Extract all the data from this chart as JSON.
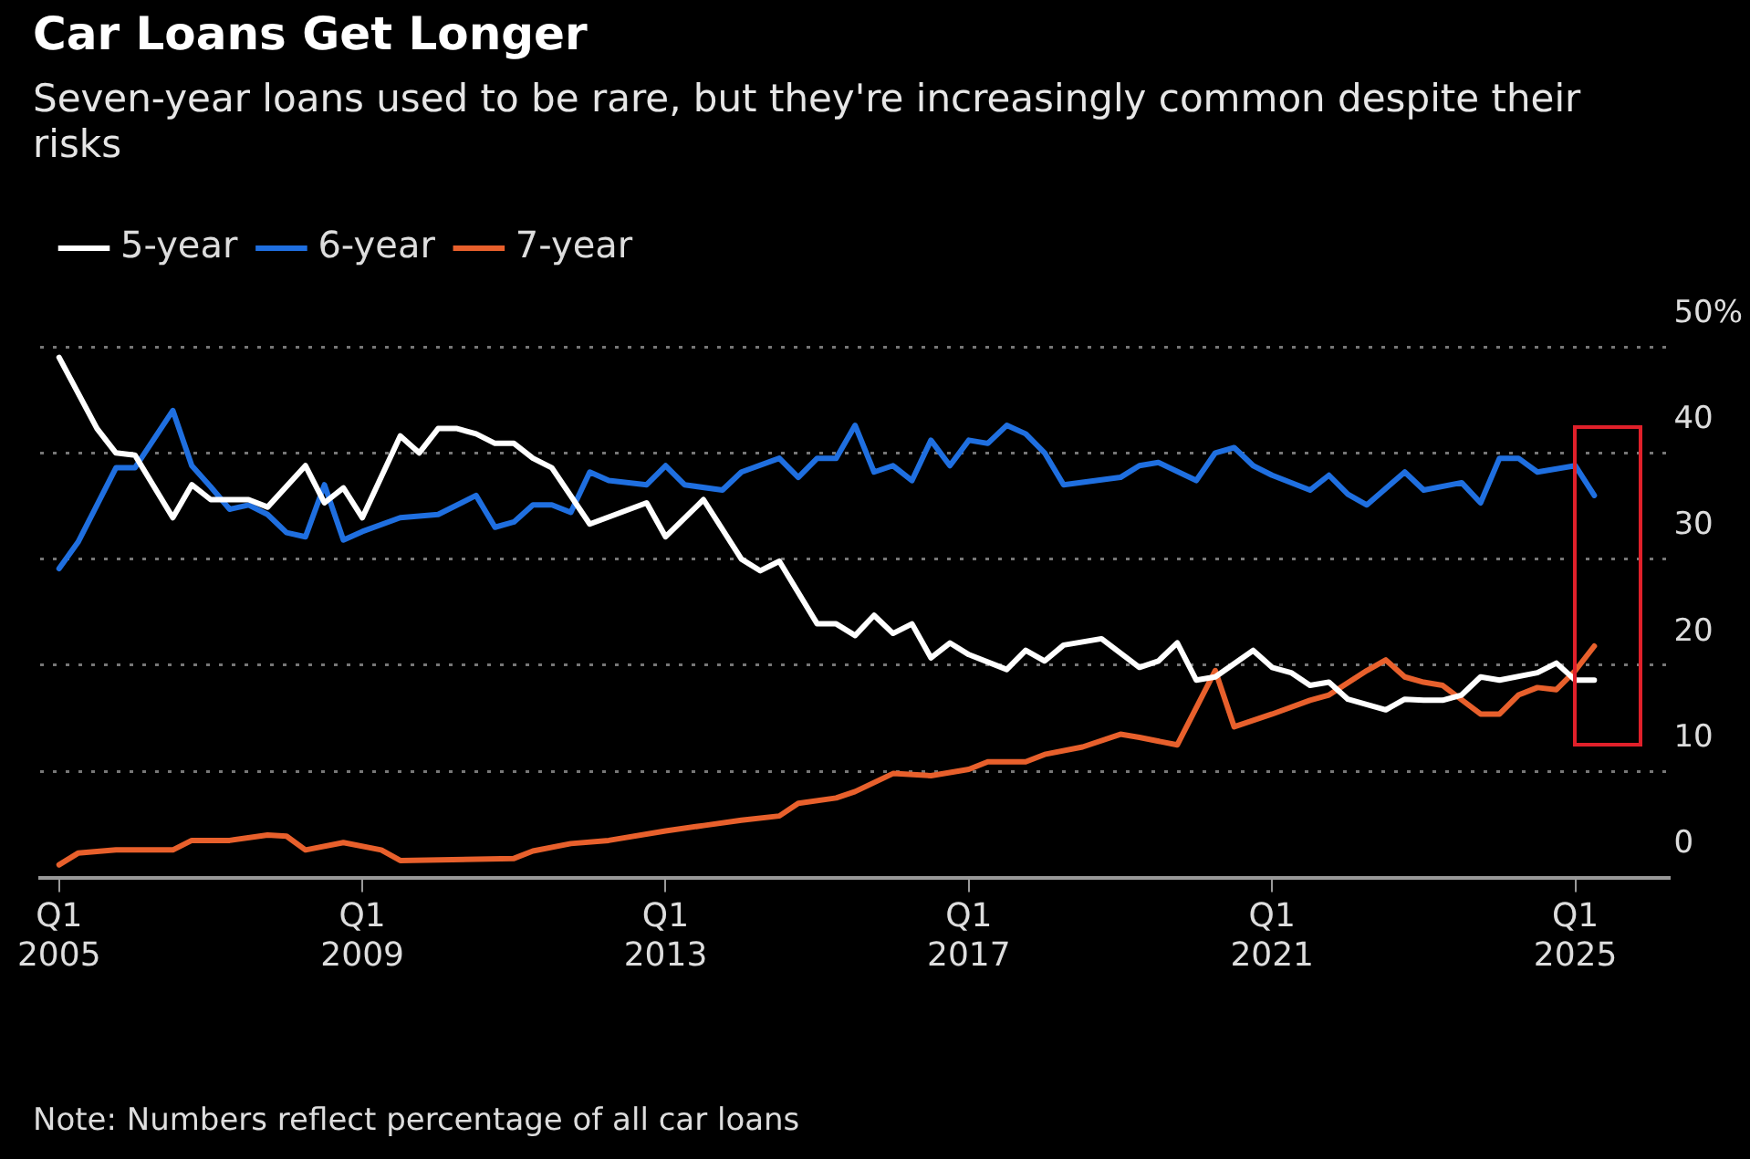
{
  "chart_data": {
    "type": "line",
    "title": "Car Loans Get Longer",
    "subtitle": "Seven-year loans used to be rare, but they're increasingly common despite their risks",
    "annotations": [
      "Note: Numbers reflect percentage of all car loans"
    ],
    "series": [
      {
        "name": "5-year",
        "color": "#ffffff",
        "x": [
          "2005-01",
          "2005-07",
          "2005-10",
          "2006-01",
          "2006-07",
          "2006-10",
          "2007-01",
          "2007-07",
          "2007-10",
          "2008-04",
          "2008-07",
          "2008-10",
          "2009-01",
          "2009-07",
          "2009-10",
          "2010-01",
          "2010-04",
          "2010-07",
          "2010-10",
          "2011-01",
          "2011-04",
          "2011-07",
          "2012-01",
          "2012-10",
          "2013-01",
          "2013-07",
          "2014-01",
          "2014-04",
          "2014-07",
          "2015-01",
          "2015-04",
          "2015-07",
          "2015-10",
          "2016-01",
          "2016-04",
          "2016-07",
          "2016-10",
          "2017-01",
          "2017-07",
          "2017-10",
          "2018-01",
          "2018-04",
          "2018-10",
          "2019-04",
          "2019-07",
          "2019-10",
          "2020-01",
          "2020-04",
          "2020-10",
          "2021-01",
          "2021-04",
          "2021-07",
          "2021-10",
          "2022-01",
          "2022-07",
          "2022-10",
          "2023-01",
          "2023-04",
          "2023-07",
          "2023-10",
          "2024-01",
          "2024-07",
          "2024-10",
          "2025-01",
          "2025-04"
        ],
        "values": [
          49,
          42.3,
          40,
          39.8,
          33.9,
          37,
          35.6,
          35.6,
          34.9,
          38.8,
          35.3,
          36.7,
          33.9,
          41.6,
          40,
          42.3,
          42.3,
          41.8,
          40.9,
          40.9,
          39.5,
          38.6,
          33.3,
          35.3,
          32.1,
          35.6,
          30,
          28.9,
          29.8,
          23.9,
          23.9,
          22.8,
          24.7,
          23,
          23.9,
          20.7,
          22.1,
          21,
          19.6,
          21.4,
          20.4,
          21.9,
          22.5,
          19.8,
          20.4,
          22.1,
          18.6,
          18.9,
          21.4,
          19.8,
          19.3,
          18.1,
          18.4,
          16.8,
          15.8,
          16.8,
          16.7,
          16.7,
          17.2,
          18.9,
          18.6,
          19.3,
          20.2,
          18.6,
          18.6
        ]
      },
      {
        "name": "6-year",
        "color": "#1f6fe0",
        "x": [
          "2005-01",
          "2005-04",
          "2005-10",
          "2006-01",
          "2006-07",
          "2006-10",
          "2007-01",
          "2007-04",
          "2007-07",
          "2007-10",
          "2008-01",
          "2008-04",
          "2008-07",
          "2008-10",
          "2009-01",
          "2009-07",
          "2010-01",
          "2010-07",
          "2010-10",
          "2011-01",
          "2011-04",
          "2011-07",
          "2011-10",
          "2012-01",
          "2012-04",
          "2012-10",
          "2013-01",
          "2013-04",
          "2013-10",
          "2014-01",
          "2014-07",
          "2014-10",
          "2015-01",
          "2015-04",
          "2015-07",
          "2015-10",
          "2016-01",
          "2016-04",
          "2016-07",
          "2016-10",
          "2017-01",
          "2017-04",
          "2017-07",
          "2017-10",
          "2018-01",
          "2018-04",
          "2019-01",
          "2019-04",
          "2019-07",
          "2020-01",
          "2020-04",
          "2020-07",
          "2020-10",
          "2021-01",
          "2021-07",
          "2021-10",
          "2022-01",
          "2022-04",
          "2022-10",
          "2023-01",
          "2023-07",
          "2023-10",
          "2024-01",
          "2024-04",
          "2024-07",
          "2025-01",
          "2025-04"
        ],
        "values": [
          29.1,
          31.6,
          38.6,
          38.6,
          44,
          38.8,
          36.8,
          34.7,
          35.1,
          34.2,
          32.5,
          32.1,
          37,
          31.8,
          32.6,
          33.9,
          34.2,
          36,
          33,
          33.5,
          35.1,
          35.1,
          34.4,
          38.2,
          37.4,
          37,
          38.8,
          37,
          36.5,
          38.2,
          39.5,
          37.7,
          39.5,
          39.5,
          42.6,
          38.2,
          38.8,
          37.4,
          41.2,
          38.8,
          41.2,
          40.9,
          42.6,
          41.8,
          40,
          37,
          37.7,
          38.8,
          39.1,
          37.4,
          40,
          40.5,
          38.8,
          37.9,
          36.5,
          37.9,
          36.1,
          35.1,
          38.2,
          36.5,
          37.2,
          35.3,
          39.5,
          39.5,
          38.2,
          38.8,
          36
        ]
      },
      {
        "name": "7-year",
        "color": "#e8602c",
        "x": [
          "2005-01",
          "2005-04",
          "2005-10",
          "2006-07",
          "2006-10",
          "2007-04",
          "2007-10",
          "2008-01",
          "2008-04",
          "2008-10",
          "2009-04",
          "2009-07",
          "2011-01",
          "2011-04",
          "2011-10",
          "2012-04",
          "2013-01",
          "2013-07",
          "2014-01",
          "2014-07",
          "2014-10",
          "2015-04",
          "2015-07",
          "2016-01",
          "2016-07",
          "2017-01",
          "2017-04",
          "2017-10",
          "2018-01",
          "2018-07",
          "2019-01",
          "2019-04",
          "2019-10",
          "2020-04",
          "2020-07",
          "2021-01",
          "2021-07",
          "2021-10",
          "2022-04",
          "2022-07",
          "2022-10",
          "2023-01",
          "2023-04",
          "2023-10",
          "2024-01",
          "2024-04",
          "2024-07",
          "2024-10",
          "2025-01",
          "2025-04"
        ],
        "values": [
          1.2,
          2.3,
          2.6,
          2.6,
          3.5,
          3.5,
          4,
          3.9,
          2.6,
          3.3,
          2.6,
          1.6,
          1.8,
          2.5,
          3.2,
          3.5,
          4.4,
          4.9,
          5.4,
          5.8,
          7,
          7.5,
          8.1,
          9.8,
          9.6,
          10.2,
          10.9,
          10.9,
          11.6,
          12.3,
          13.5,
          13.2,
          12.5,
          19.5,
          14.2,
          15.4,
          16.7,
          17.2,
          19.5,
          20.5,
          18.9,
          18.4,
          18.1,
          15.4,
          15.4,
          17.2,
          17.9,
          17.7,
          19.5,
          21.8
        ]
      }
    ],
    "xlim": [
      "2004-10",
      "2026-04"
    ],
    "xticks": [
      {
        "value": "2005-01",
        "label": "Q1 2005"
      },
      {
        "value": "2009-01",
        "label": "Q1 2009"
      },
      {
        "value": "2013-01",
        "label": "Q1 2013"
      },
      {
        "value": "2017-01",
        "label": "Q1 2017"
      },
      {
        "value": "2021-01",
        "label": "Q1 2021"
      },
      {
        "value": "2025-01",
        "label": "Q1 2025"
      }
    ],
    "ylim": [
      0,
      50
    ],
    "yticks": [
      0,
      10,
      20,
      30,
      {
        "value": 40,
        "label": "40"
      },
      {
        "value": 50,
        "label": "50%"
      }
    ],
    "grid": "y",
    "legend": "top left",
    "marker": "none"
  }
}
